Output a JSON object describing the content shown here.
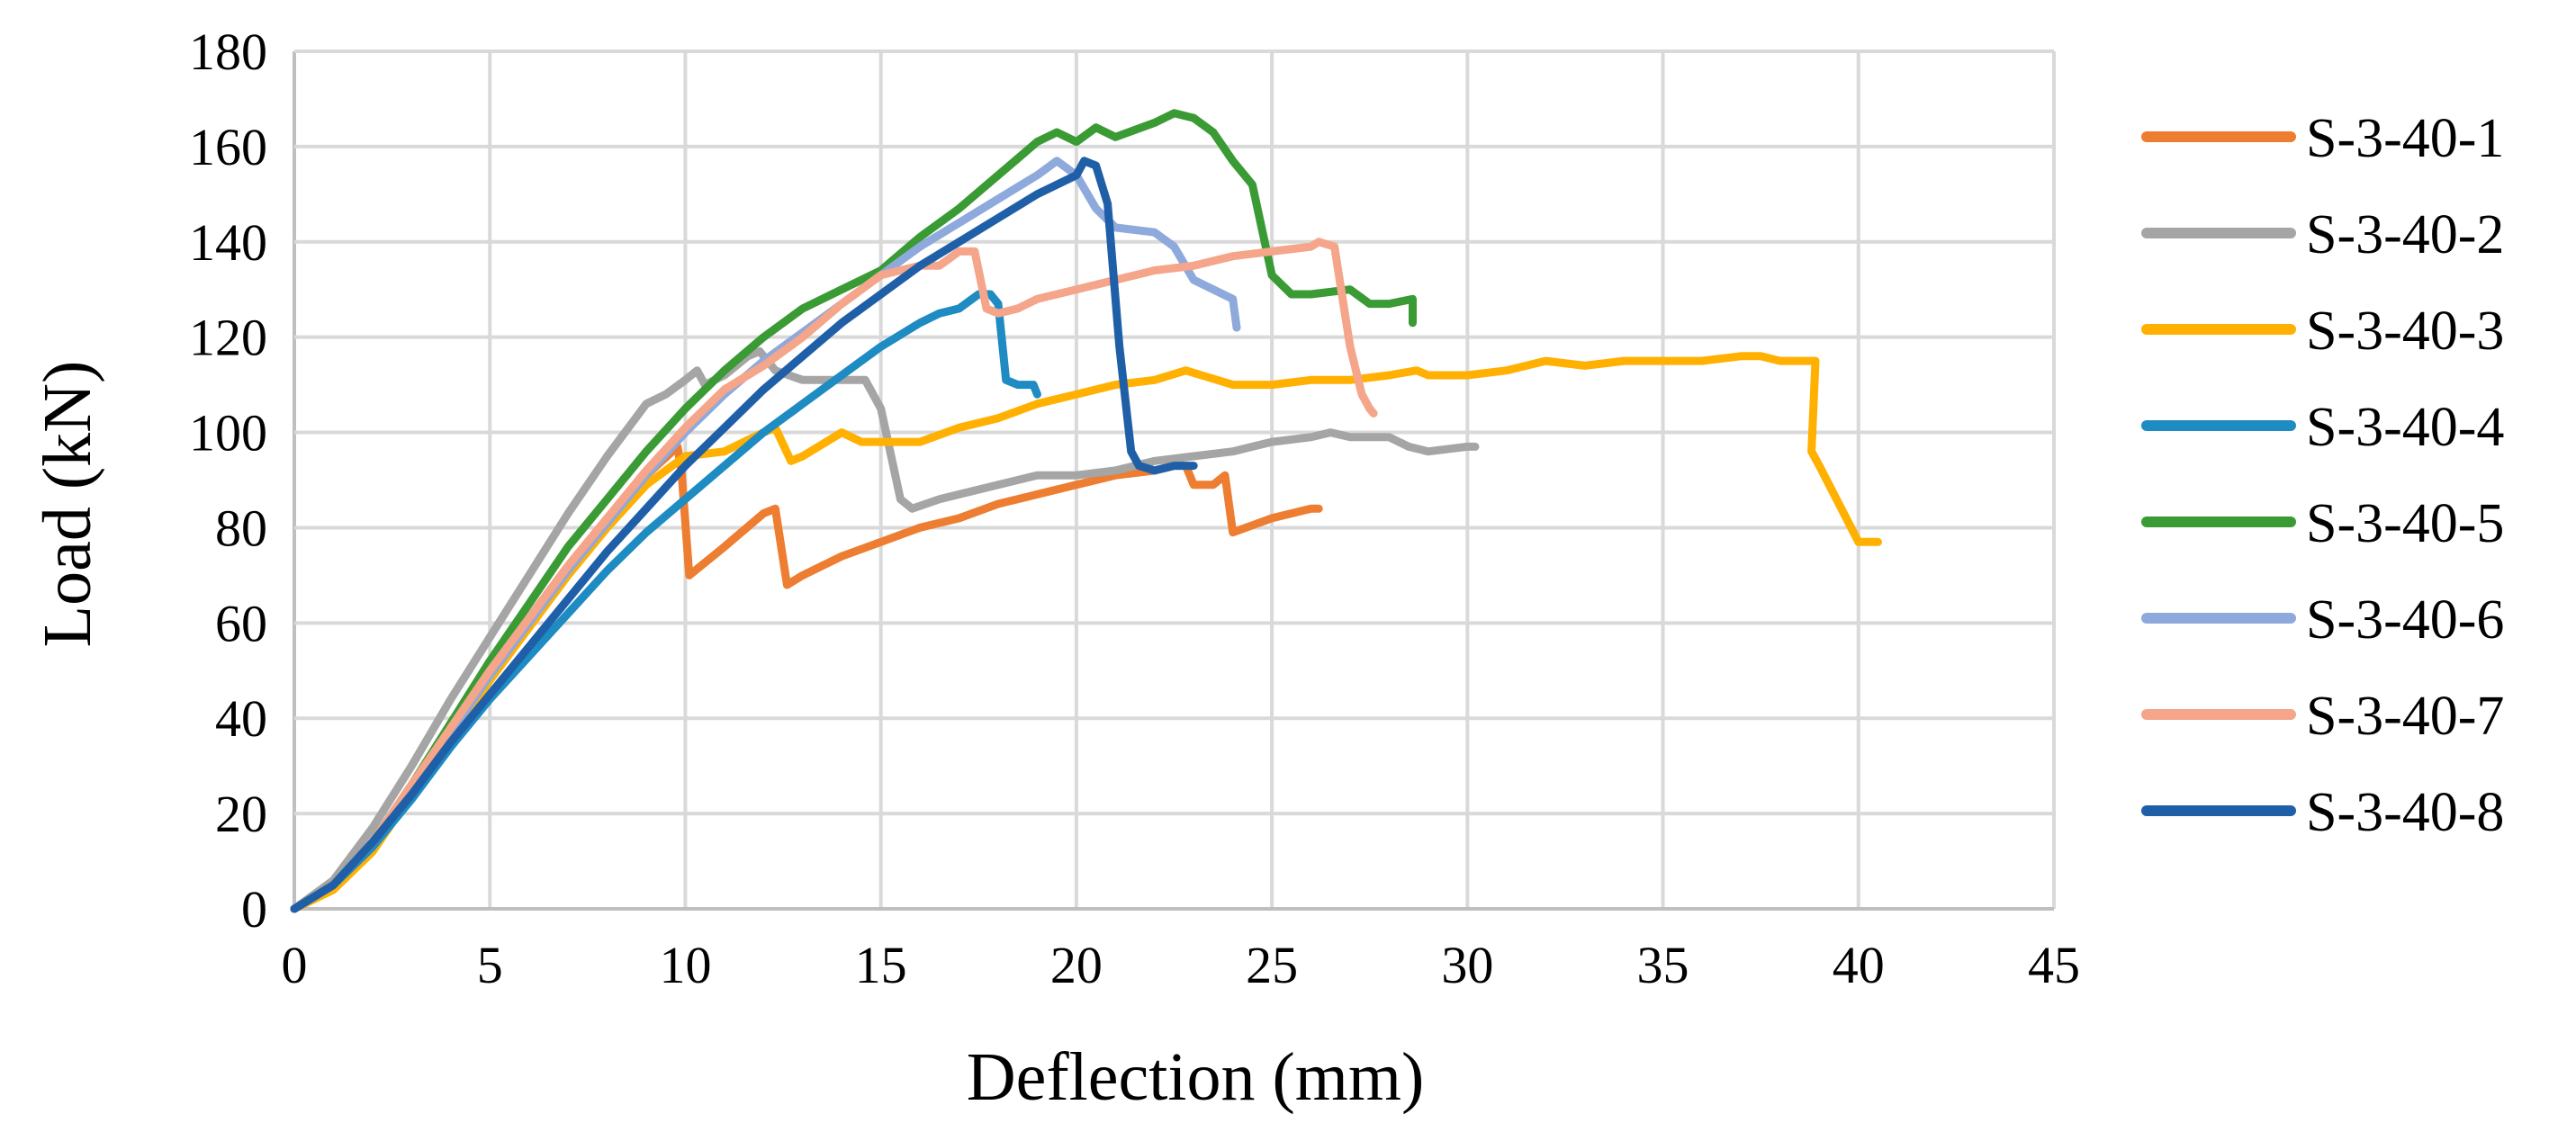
{
  "chart_data": {
    "type": "line",
    "title": "",
    "xlabel": "Deflection (mm)",
    "ylabel": "Load (kN)",
    "xlim": [
      0,
      45
    ],
    "ylim": [
      0,
      180
    ],
    "xticks": [
      0,
      5,
      10,
      15,
      20,
      25,
      30,
      35,
      40,
      45
    ],
    "yticks": [
      0,
      20,
      40,
      60,
      80,
      100,
      120,
      140,
      160,
      180
    ],
    "grid": true,
    "legend_position": "right",
    "series": [
      {
        "name": "S-3-40-1",
        "color": "#ED7D31",
        "points": [
          [
            0,
            0
          ],
          [
            1,
            5
          ],
          [
            2,
            14
          ],
          [
            3,
            26
          ],
          [
            4,
            38
          ],
          [
            5,
            50
          ],
          [
            6,
            61
          ],
          [
            7,
            72
          ],
          [
            8,
            82
          ],
          [
            9,
            91
          ],
          [
            9.8,
            97
          ],
          [
            9.9,
            92
          ],
          [
            10.1,
            70
          ],
          [
            11,
            76
          ],
          [
            12,
            83
          ],
          [
            12.3,
            84
          ],
          [
            12.6,
            68
          ],
          [
            13,
            70
          ],
          [
            14,
            74
          ],
          [
            15,
            77
          ],
          [
            16,
            80
          ],
          [
            17,
            82
          ],
          [
            18,
            85
          ],
          [
            19,
            87
          ],
          [
            20,
            89
          ],
          [
            21,
            91
          ],
          [
            22,
            92
          ],
          [
            22.5,
            93
          ],
          [
            22.8,
            93
          ],
          [
            23,
            89
          ],
          [
            23.5,
            89
          ],
          [
            23.8,
            91
          ],
          [
            24,
            79
          ],
          [
            25,
            82
          ],
          [
            26,
            84
          ],
          [
            26.2,
            84
          ]
        ]
      },
      {
        "name": "S-3-40-2",
        "color": "#A5A5A5",
        "points": [
          [
            0,
            0
          ],
          [
            1,
            6
          ],
          [
            2,
            17
          ],
          [
            3,
            30
          ],
          [
            4,
            44
          ],
          [
            5,
            57
          ],
          [
            6,
            70
          ],
          [
            7,
            83
          ],
          [
            8,
            95
          ],
          [
            9,
            106
          ],
          [
            9.5,
            108
          ],
          [
            10,
            111
          ],
          [
            10.3,
            113
          ],
          [
            10.5,
            110
          ],
          [
            11,
            112
          ],
          [
            11.6,
            116
          ],
          [
            11.9,
            117
          ],
          [
            12.3,
            113
          ],
          [
            13,
            111
          ],
          [
            14,
            111
          ],
          [
            14.6,
            111
          ],
          [
            15,
            105
          ],
          [
            15.5,
            86
          ],
          [
            15.8,
            84
          ],
          [
            16.5,
            86
          ],
          [
            17,
            87
          ],
          [
            18,
            89
          ],
          [
            19,
            91
          ],
          [
            20,
            91
          ],
          [
            21,
            92
          ],
          [
            22,
            94
          ],
          [
            23,
            95
          ],
          [
            24,
            96
          ],
          [
            25,
            98
          ],
          [
            26,
            99
          ],
          [
            26.5,
            100
          ],
          [
            27,
            99
          ],
          [
            28,
            99
          ],
          [
            28.5,
            97
          ],
          [
            29,
            96
          ],
          [
            30,
            97
          ],
          [
            30.2,
            97
          ]
        ]
      },
      {
        "name": "S-3-40-3",
        "color": "#FFB000",
        "points": [
          [
            0,
            0
          ],
          [
            1,
            4
          ],
          [
            2,
            12
          ],
          [
            3,
            24
          ],
          [
            4,
            36
          ],
          [
            5,
            48
          ],
          [
            6,
            59
          ],
          [
            7,
            70
          ],
          [
            8,
            80
          ],
          [
            9,
            89
          ],
          [
            10,
            95
          ],
          [
            11,
            96
          ],
          [
            12,
            100
          ],
          [
            12.3,
            101
          ],
          [
            12.7,
            94
          ],
          [
            13,
            95
          ],
          [
            14,
            100
          ],
          [
            14.5,
            98
          ],
          [
            15,
            98
          ],
          [
            16,
            98
          ],
          [
            17,
            101
          ],
          [
            18,
            103
          ],
          [
            19,
            106
          ],
          [
            20,
            108
          ],
          [
            21,
            110
          ],
          [
            22,
            111
          ],
          [
            22.8,
            113
          ],
          [
            23.2,
            112
          ],
          [
            24,
            110
          ],
          [
            25,
            110
          ],
          [
            26,
            111
          ],
          [
            27,
            111
          ],
          [
            28,
            112
          ],
          [
            28.7,
            113
          ],
          [
            29,
            112
          ],
          [
            30,
            112
          ],
          [
            31,
            113
          ],
          [
            32,
            115
          ],
          [
            33,
            114
          ],
          [
            34,
            115
          ],
          [
            35,
            115
          ],
          [
            36,
            115
          ],
          [
            37,
            116
          ],
          [
            37.5,
            116
          ],
          [
            38,
            115
          ],
          [
            38.9,
            115
          ],
          [
            38.8,
            96
          ],
          [
            39,
            93
          ],
          [
            39.5,
            85
          ],
          [
            40,
            77
          ],
          [
            40.5,
            77
          ]
        ]
      },
      {
        "name": "S-3-40-4",
        "color": "#1E8BC3",
        "points": [
          [
            0,
            0
          ],
          [
            1,
            5
          ],
          [
            2,
            13
          ],
          [
            3,
            23
          ],
          [
            4,
            34
          ],
          [
            5,
            44
          ],
          [
            6,
            53
          ],
          [
            7,
            62
          ],
          [
            8,
            71
          ],
          [
            9,
            79
          ],
          [
            10,
            86
          ],
          [
            11,
            93
          ],
          [
            12,
            100
          ],
          [
            13,
            106
          ],
          [
            14,
            112
          ],
          [
            15,
            118
          ],
          [
            16,
            123
          ],
          [
            16.5,
            125
          ],
          [
            17,
            126
          ],
          [
            17.5,
            129
          ],
          [
            17.8,
            129
          ],
          [
            18,
            127
          ],
          [
            18.2,
            111
          ],
          [
            18.5,
            110
          ],
          [
            18.9,
            110
          ],
          [
            19,
            108
          ]
        ]
      },
      {
        "name": "S-3-40-5",
        "color": "#3A9B35",
        "points": [
          [
            0,
            0
          ],
          [
            1,
            5
          ],
          [
            2,
            14
          ],
          [
            3,
            26
          ],
          [
            4,
            39
          ],
          [
            5,
            52
          ],
          [
            6,
            64
          ],
          [
            7,
            76
          ],
          [
            8,
            86
          ],
          [
            9,
            96
          ],
          [
            10,
            105
          ],
          [
            11,
            113
          ],
          [
            12,
            120
          ],
          [
            13,
            126
          ],
          [
            14,
            130
          ],
          [
            15,
            134
          ],
          [
            16,
            141
          ],
          [
            17,
            147
          ],
          [
            18,
            154
          ],
          [
            19,
            161
          ],
          [
            19.5,
            163
          ],
          [
            20,
            161
          ],
          [
            20.5,
            164
          ],
          [
            21,
            162
          ],
          [
            22,
            165
          ],
          [
            22.5,
            167
          ],
          [
            23,
            166
          ],
          [
            23.5,
            163
          ],
          [
            24,
            157
          ],
          [
            24.5,
            152
          ],
          [
            25,
            133
          ],
          [
            25.5,
            129
          ],
          [
            26,
            129
          ],
          [
            27,
            130
          ],
          [
            27.5,
            127
          ],
          [
            28,
            127
          ],
          [
            28.6,
            128
          ],
          [
            28.6,
            123
          ]
        ]
      },
      {
        "name": "S-3-40-6",
        "color": "#8EA9DB",
        "points": [
          [
            0,
            0
          ],
          [
            1,
            5
          ],
          [
            2,
            14
          ],
          [
            3,
            25
          ],
          [
            4,
            37
          ],
          [
            5,
            49
          ],
          [
            6,
            60
          ],
          [
            7,
            71
          ],
          [
            8,
            81
          ],
          [
            9,
            91
          ],
          [
            10,
            100
          ],
          [
            11,
            108
          ],
          [
            12,
            115
          ],
          [
            13,
            121
          ],
          [
            14,
            127
          ],
          [
            15,
            133
          ],
          [
            16,
            139
          ],
          [
            17,
            144
          ],
          [
            18,
            149
          ],
          [
            19,
            154
          ],
          [
            19.5,
            157
          ],
          [
            20,
            154
          ],
          [
            20.5,
            147
          ],
          [
            21,
            143
          ],
          [
            22,
            142
          ],
          [
            22.5,
            139
          ],
          [
            23,
            132
          ],
          [
            23.5,
            130
          ],
          [
            24,
            128
          ],
          [
            24.1,
            122
          ]
        ]
      },
      {
        "name": "S-3-40-7",
        "color": "#F4A58A",
        "points": [
          [
            0,
            0
          ],
          [
            1,
            5
          ],
          [
            2,
            14
          ],
          [
            3,
            26
          ],
          [
            4,
            38
          ],
          [
            5,
            50
          ],
          [
            6,
            61
          ],
          [
            7,
            72
          ],
          [
            8,
            82
          ],
          [
            9,
            92
          ],
          [
            10,
            101
          ],
          [
            11,
            109
          ],
          [
            12,
            114
          ],
          [
            13,
            120
          ],
          [
            14,
            127
          ],
          [
            15,
            133
          ],
          [
            16,
            135
          ],
          [
            16.5,
            135
          ],
          [
            17,
            138
          ],
          [
            17.4,
            138
          ],
          [
            17.7,
            126
          ],
          [
            18,
            125
          ],
          [
            18.5,
            126
          ],
          [
            19,
            128
          ],
          [
            20,
            130
          ],
          [
            21,
            132
          ],
          [
            22,
            134
          ],
          [
            23,
            135
          ],
          [
            24,
            137
          ],
          [
            25,
            138
          ],
          [
            26,
            139
          ],
          [
            26.2,
            140
          ],
          [
            26.6,
            139
          ],
          [
            27,
            118
          ],
          [
            27.3,
            108
          ],
          [
            27.5,
            105
          ],
          [
            27.6,
            104
          ]
        ]
      },
      {
        "name": "S-3-40-8",
        "color": "#1F5FA8",
        "points": [
          [
            0,
            0
          ],
          [
            1,
            5
          ],
          [
            2,
            14
          ],
          [
            3,
            24
          ],
          [
            4,
            35
          ],
          [
            5,
            45
          ],
          [
            6,
            55
          ],
          [
            7,
            65
          ],
          [
            8,
            75
          ],
          [
            9,
            84
          ],
          [
            10,
            93
          ],
          [
            11,
            101
          ],
          [
            12,
            109
          ],
          [
            13,
            116
          ],
          [
            14,
            123
          ],
          [
            15,
            129
          ],
          [
            16,
            135
          ],
          [
            17,
            140
          ],
          [
            18,
            145
          ],
          [
            19,
            150
          ],
          [
            20,
            154
          ],
          [
            20.2,
            157
          ],
          [
            20.5,
            156
          ],
          [
            20.8,
            148
          ],
          [
            21.1,
            118
          ],
          [
            21.4,
            96
          ],
          [
            21.6,
            93
          ],
          [
            22,
            92
          ],
          [
            22.5,
            93
          ],
          [
            23,
            93
          ]
        ]
      }
    ]
  }
}
